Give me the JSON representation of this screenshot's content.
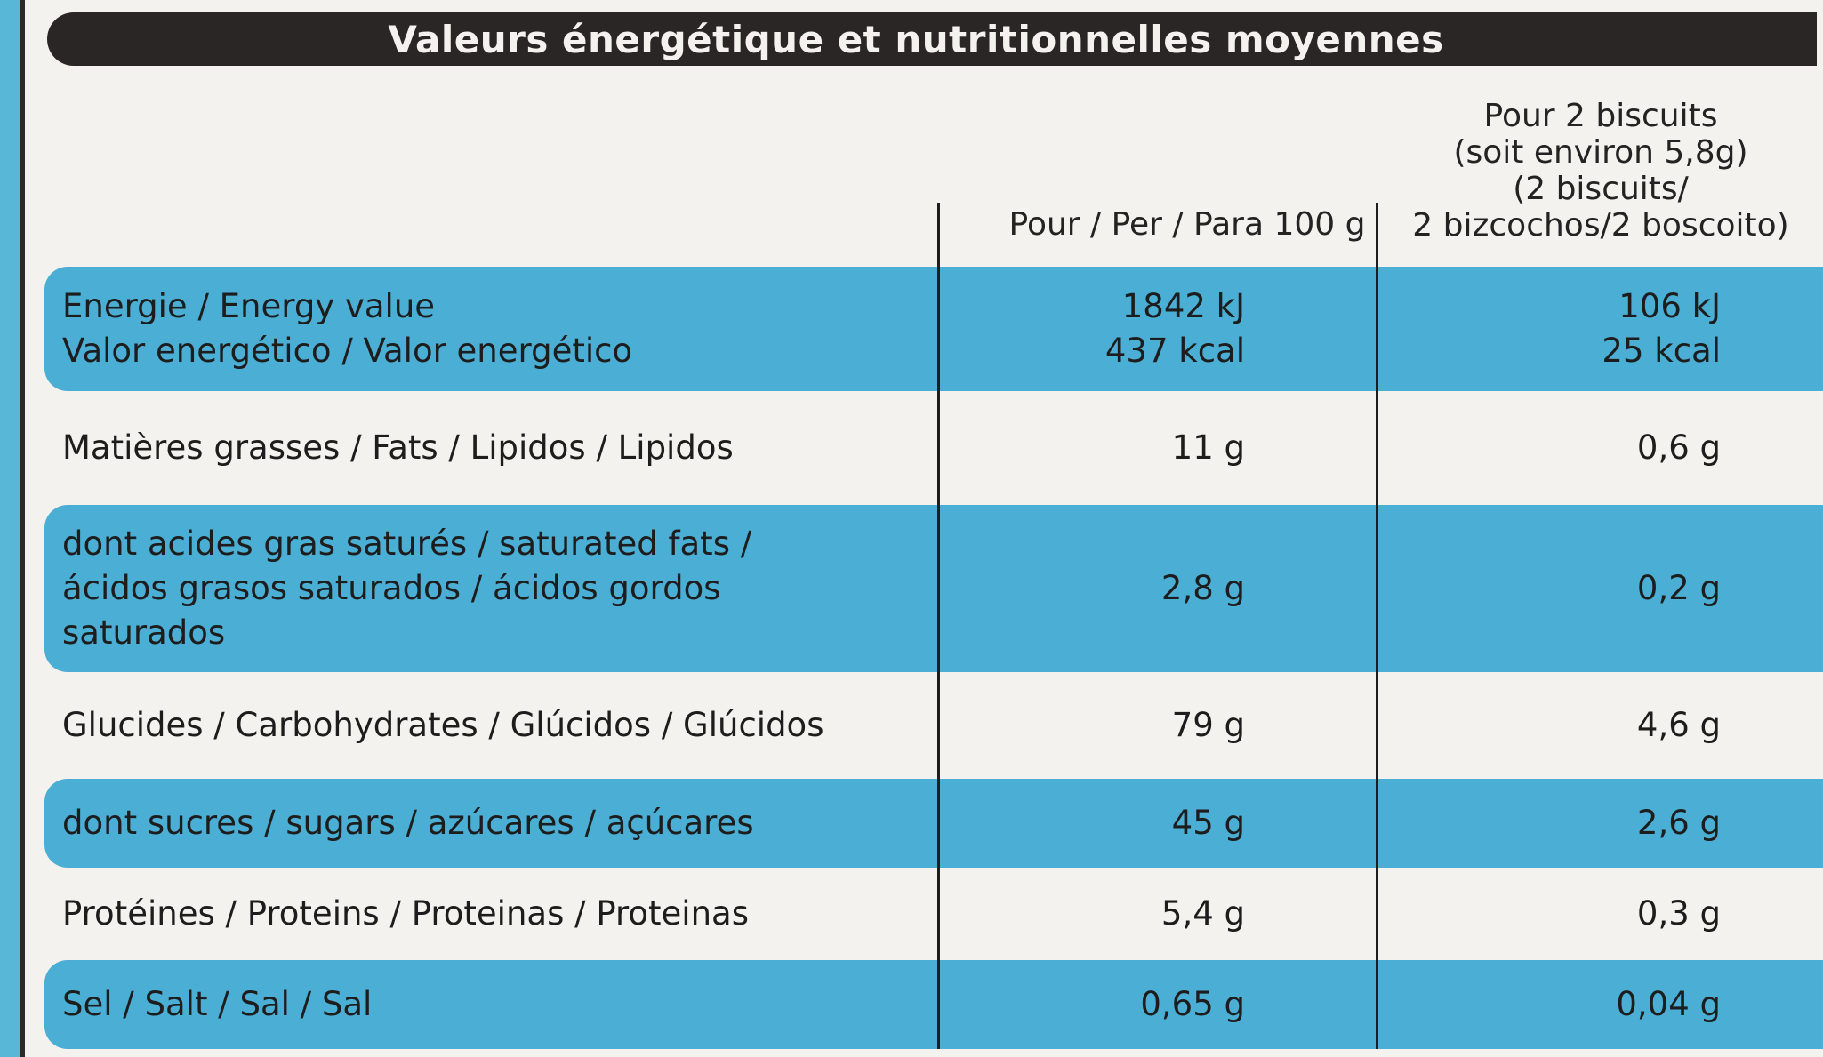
{
  "title": "Valeurs énergétique et nutritionnelles moyennes",
  "columns": {
    "per100": "Pour / Per / Para 100 g",
    "portion": [
      "Pour 2 biscuits",
      "(soit environ 5,8g)",
      "(2 biscuits/",
      "2 bizcochos/2 boscoito)"
    ]
  },
  "rows": [
    {
      "label": [
        "Energie / Energy value",
        "Valor energético / Valor energético"
      ],
      "per100": [
        "1842 kJ",
        "437 kcal"
      ],
      "portion": [
        "106 kJ",
        "25 kcal"
      ],
      "highlight": true
    },
    {
      "label": [
        "Matières grasses / Fats / Lipidos / Lipidos"
      ],
      "per100": [
        "11 g"
      ],
      "portion": [
        "0,6 g"
      ],
      "highlight": false
    },
    {
      "label": [
        "dont acides gras saturés / saturated fats /",
        "ácidos grasos saturados / ácidos gordos",
        "saturados"
      ],
      "per100": [
        "2,8 g"
      ],
      "portion": [
        "0,2 g"
      ],
      "highlight": true
    },
    {
      "label": [
        "Glucides / Carbohydrates / Glúcidos / Glúcidos"
      ],
      "per100": [
        "79 g"
      ],
      "portion": [
        "4,6 g"
      ],
      "highlight": false
    },
    {
      "label": [
        "dont sucres / sugars / azúcares / açúcares"
      ],
      "per100": [
        "45 g"
      ],
      "portion": [
        "2,6 g"
      ],
      "highlight": true
    },
    {
      "label": [
        "Protéines / Proteins / Proteinas / Proteinas"
      ],
      "per100": [
        "5,4 g"
      ],
      "portion": [
        "0,3 g"
      ],
      "highlight": false
    },
    {
      "label": [
        "Sel / Salt / Sal / Sal"
      ],
      "per100": [
        "0,65 g"
      ],
      "portion": [
        "0,04 g"
      ],
      "highlight": true
    }
  ],
  "colors": {
    "background": "#58b7d6",
    "panel": "#f4f2ee",
    "title_bar": "#2a2626",
    "row_highlight": "#4baed4",
    "text": "#1d1d1d"
  }
}
